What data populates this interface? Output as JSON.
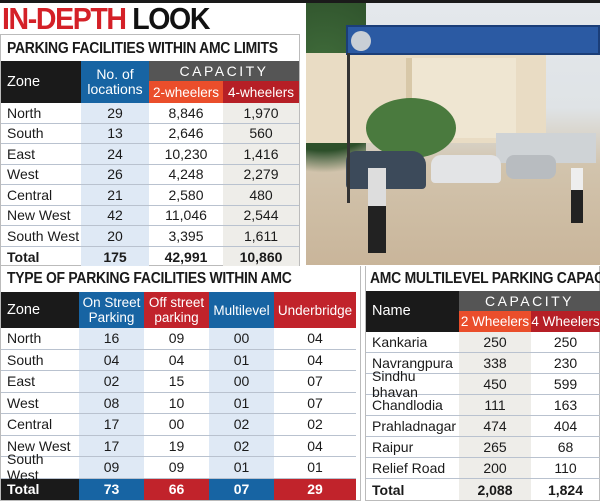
{
  "header": {
    "title_red": "IN-DEPTH",
    "title_black": "LOOK"
  },
  "colors": {
    "black": "#1a1a1a",
    "blue": "#1764a3",
    "red": "#c1232b",
    "orange": "#ea4e2b",
    "dark_red": "#b61f26",
    "gray": "#555555"
  },
  "table1": {
    "title": "PARKING FACILITIES WITHIN AMC LIMITS",
    "headers": {
      "zone": "Zone",
      "locations": "No. of locations",
      "capacity": "CAPACITY",
      "two": "2-wheelers",
      "four": "4-wheelers"
    },
    "rows": [
      [
        "North",
        "29",
        "8,846",
        "1,970"
      ],
      [
        "South",
        "13",
        "2,646",
        "560"
      ],
      [
        "East",
        "24",
        "10,230",
        "1,416"
      ],
      [
        "West",
        "26",
        "4,248",
        "2,279"
      ],
      [
        "Central",
        "21",
        "2,580",
        "480"
      ],
      [
        "New West",
        "42",
        "11,046",
        "2,544"
      ],
      [
        "South West",
        "20",
        "3,395",
        "1,611"
      ],
      [
        "Total",
        "175",
        "42,991",
        "10,860"
      ]
    ]
  },
  "table2": {
    "title": "TYPE OF PARKING FACILITIES WITHIN AMC",
    "headers": [
      "Zone",
      "On Street Parking",
      "Off street parking",
      "Multilevel",
      "Underbridge"
    ],
    "rows": [
      [
        "North",
        "16",
        "09",
        "00",
        "04"
      ],
      [
        "South",
        "04",
        "04",
        "01",
        "04"
      ],
      [
        "East",
        "02",
        "15",
        "00",
        "07"
      ],
      [
        "West",
        "08",
        "10",
        "01",
        "07"
      ],
      [
        "Central",
        "17",
        "00",
        "02",
        "02"
      ],
      [
        "New West",
        "17",
        "19",
        "02",
        "04"
      ],
      [
        "South West",
        "09",
        "09",
        "01",
        "01"
      ],
      [
        "Total",
        "73",
        "66",
        "07",
        "29"
      ]
    ]
  },
  "table3": {
    "title": "AMC MULTILEVEL PARKING CAPACITY",
    "headers": {
      "name": "Name",
      "capacity": "CAPACITY",
      "two": "2 Wheelers",
      "four": "4 Wheelers"
    },
    "rows": [
      [
        "Kankaria",
        "250",
        "250"
      ],
      [
        "Navrangpura",
        "338",
        "230"
      ],
      [
        "Sindhu bhavan",
        "450",
        "599"
      ],
      [
        "Chandlodia",
        "111",
        "163"
      ],
      [
        "Prahladnagar",
        "474",
        "404"
      ],
      [
        "Raipur",
        "265",
        "68"
      ],
      [
        "Relief Road",
        "200",
        "110"
      ],
      [
        "Total",
        "2,088",
        "1,824"
      ]
    ]
  },
  "photo": {
    "description_icon": "photo-parking-lot"
  }
}
